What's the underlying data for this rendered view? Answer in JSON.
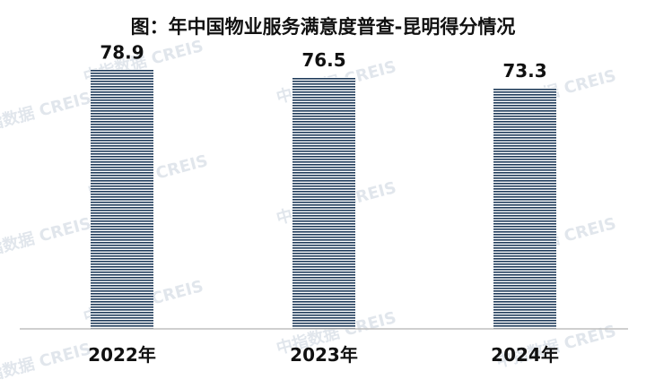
{
  "title": "图：年中国物业服务满意度普查-昆明得分情况",
  "watermark": "中指数据  CREIS",
  "chart_data": {
    "type": "bar",
    "title": "图：年中国物业服务满意度普查-昆明得分情况",
    "categories": [
      "2022年",
      "2023年",
      "2024年"
    ],
    "values": [
      78.9,
      76.5,
      73.3
    ],
    "value_labels": [
      "78.9",
      "76.5",
      "73.3"
    ],
    "xlabel": "",
    "ylabel": "",
    "ylim": [
      0,
      100
    ],
    "grid": false,
    "legend": "none",
    "colors": {
      "bar_line": "#1f3b5a",
      "bar_bg": "#ffffff",
      "axis": "#bfbfbf"
    }
  }
}
